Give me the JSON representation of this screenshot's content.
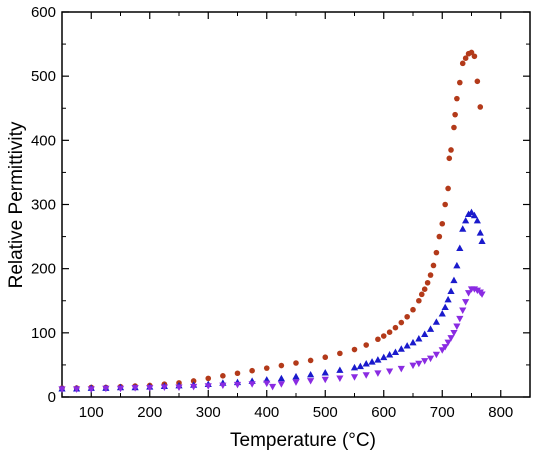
{
  "chart_data": {
    "type": "scatter",
    "xlabel": "Temperature (°C)",
    "ylabel": "Relative Permittivity",
    "xlim": [
      50,
      850
    ],
    "ylim": [
      0,
      600
    ],
    "x_ticks": [
      100,
      200,
      300,
      400,
      500,
      600,
      700,
      800
    ],
    "y_ticks": [
      0,
      100,
      200,
      300,
      400,
      500,
      600
    ],
    "grid": false,
    "legend": "none",
    "series": [
      {
        "marker": "circle",
        "color": "#b33a1a",
        "points": [
          [
            50,
            14
          ],
          [
            75,
            14
          ],
          [
            100,
            15
          ],
          [
            125,
            15
          ],
          [
            150,
            16
          ],
          [
            175,
            17
          ],
          [
            200,
            18
          ],
          [
            225,
            20
          ],
          [
            250,
            22
          ],
          [
            275,
            25
          ],
          [
            300,
            29
          ],
          [
            325,
            33
          ],
          [
            350,
            37
          ],
          [
            375,
            41
          ],
          [
            400,
            45
          ],
          [
            425,
            49
          ],
          [
            450,
            53
          ],
          [
            475,
            57
          ],
          [
            500,
            62
          ],
          [
            525,
            68
          ],
          [
            550,
            74
          ],
          [
            570,
            81
          ],
          [
            590,
            90
          ],
          [
            600,
            95
          ],
          [
            610,
            101
          ],
          [
            620,
            108
          ],
          [
            630,
            116
          ],
          [
            640,
            125
          ],
          [
            650,
            136
          ],
          [
            660,
            150
          ],
          [
            665,
            160
          ],
          [
            670,
            168
          ],
          [
            675,
            178
          ],
          [
            680,
            190
          ],
          [
            685,
            205
          ],
          [
            690,
            225
          ],
          [
            695,
            250
          ],
          [
            700,
            270
          ],
          [
            705,
            300
          ],
          [
            710,
            325
          ],
          [
            712,
            372
          ],
          [
            715,
            385
          ],
          [
            720,
            420
          ],
          [
            722,
            440
          ],
          [
            725,
            465
          ],
          [
            730,
            490
          ],
          [
            735,
            520
          ],
          [
            740,
            528
          ],
          [
            745,
            535
          ],
          [
            750,
            537
          ],
          [
            755,
            531
          ],
          [
            760,
            492
          ],
          [
            765,
            452
          ]
        ]
      },
      {
        "marker": "triangle-up",
        "color": "#1a1acc",
        "points": [
          [
            50,
            13
          ],
          [
            75,
            13
          ],
          [
            100,
            14
          ],
          [
            125,
            14
          ],
          [
            150,
            15
          ],
          [
            175,
            15
          ],
          [
            200,
            16
          ],
          [
            225,
            17
          ],
          [
            250,
            18
          ],
          [
            275,
            19
          ],
          [
            300,
            20
          ],
          [
            325,
            22
          ],
          [
            350,
            23
          ],
          [
            375,
            25
          ],
          [
            400,
            27
          ],
          [
            425,
            29
          ],
          [
            450,
            32
          ],
          [
            475,
            35
          ],
          [
            500,
            38
          ],
          [
            525,
            42
          ],
          [
            550,
            46
          ],
          [
            560,
            48
          ],
          [
            570,
            52
          ],
          [
            580,
            55
          ],
          [
            590,
            58
          ],
          [
            600,
            62
          ],
          [
            610,
            66
          ],
          [
            620,
            70
          ],
          [
            630,
            75
          ],
          [
            640,
            80
          ],
          [
            650,
            85
          ],
          [
            660,
            91
          ],
          [
            670,
            98
          ],
          [
            680,
            106
          ],
          [
            690,
            117
          ],
          [
            700,
            130
          ],
          [
            705,
            140
          ],
          [
            710,
            152
          ],
          [
            715,
            165
          ],
          [
            720,
            182
          ],
          [
            725,
            205
          ],
          [
            730,
            232
          ],
          [
            735,
            262
          ],
          [
            740,
            275
          ],
          [
            745,
            285
          ],
          [
            750,
            288
          ],
          [
            755,
            283
          ],
          [
            760,
            275
          ],
          [
            765,
            256
          ],
          [
            768,
            243
          ]
        ]
      },
      {
        "marker": "triangle-down",
        "color": "#8a2be2",
        "points": [
          [
            50,
            12
          ],
          [
            75,
            12
          ],
          [
            100,
            12
          ],
          [
            125,
            13
          ],
          [
            150,
            13
          ],
          [
            175,
            14
          ],
          [
            200,
            14
          ],
          [
            225,
            15
          ],
          [
            250,
            15
          ],
          [
            275,
            16
          ],
          [
            300,
            17
          ],
          [
            325,
            18
          ],
          [
            350,
            19
          ],
          [
            375,
            20
          ],
          [
            400,
            21
          ],
          [
            410,
            16
          ],
          [
            425,
            20
          ],
          [
            450,
            23
          ],
          [
            475,
            25
          ],
          [
            500,
            27
          ],
          [
            525,
            29
          ],
          [
            550,
            31
          ],
          [
            570,
            34
          ],
          [
            590,
            37
          ],
          [
            610,
            40
          ],
          [
            630,
            44
          ],
          [
            650,
            49
          ],
          [
            660,
            52
          ],
          [
            670,
            56
          ],
          [
            680,
            60
          ],
          [
            690,
            66
          ],
          [
            700,
            73
          ],
          [
            705,
            78
          ],
          [
            710,
            85
          ],
          [
            715,
            92
          ],
          [
            720,
            100
          ],
          [
            725,
            110
          ],
          [
            730,
            122
          ],
          [
            735,
            135
          ],
          [
            740,
            148
          ],
          [
            745,
            162
          ],
          [
            750,
            168
          ],
          [
            755,
            168
          ],
          [
            760,
            166
          ],
          [
            765,
            163
          ],
          [
            768,
            160
          ]
        ]
      }
    ]
  }
}
